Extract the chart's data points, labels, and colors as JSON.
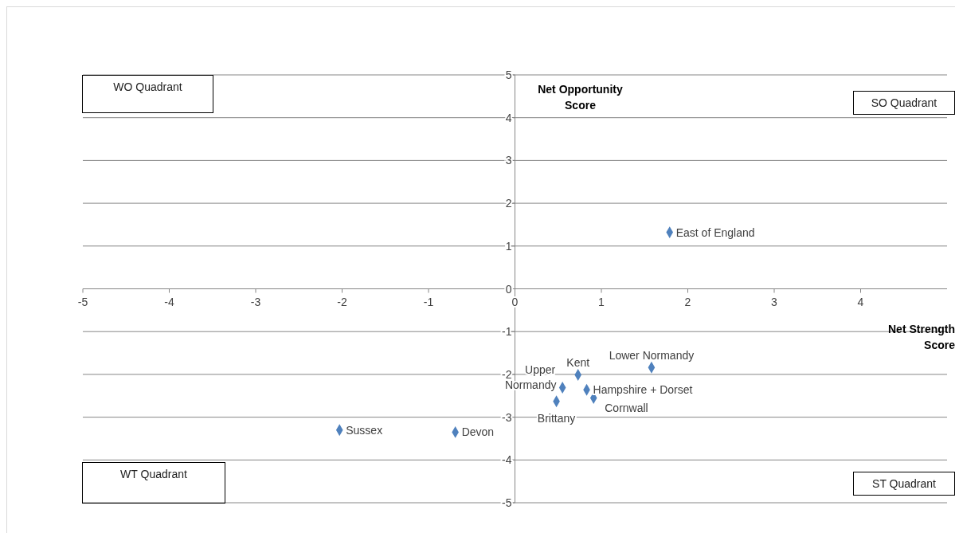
{
  "chart_data": {
    "type": "scatter",
    "xlabel": "Net Strength Score",
    "ylabel": "Net Opportunity Score",
    "xlim": [
      -5,
      5
    ],
    "ylim": [
      -5,
      5
    ],
    "xticks": [
      -5,
      -4,
      -3,
      -2,
      -1,
      0,
      1,
      2,
      3,
      4
    ],
    "yticks": [
      -5,
      -4,
      -3,
      -2,
      -1,
      0,
      1,
      2,
      3,
      4,
      5
    ],
    "grid": "y",
    "marker": "diamond",
    "annotations": [
      "WO Quadrant",
      "SO Quadrant",
      "WT Quadrant",
      "ST Quadrant"
    ],
    "series": [
      {
        "name": "East of England",
        "color": "#4f81bd",
        "x": [
          1.79
        ],
        "values": [
          1.32
        ]
      },
      {
        "name": "Lower Normandy",
        "color": "#4f81bd",
        "x": [
          1.58
        ],
        "values": [
          -1.84
        ]
      },
      {
        "name": "Kent",
        "color": "#4f81bd",
        "x": [
          0.73
        ],
        "values": [
          -2.01
        ]
      },
      {
        "name": "Upper Normandy",
        "color": "#4f81bd",
        "x": [
          0.55
        ],
        "values": [
          -2.31
        ]
      },
      {
        "name": "Hampshire + Dorset",
        "color": "#4f81bd",
        "x": [
          0.83
        ],
        "values": [
          -2.36
        ]
      },
      {
        "name": "Cornwall",
        "color": "#4f81bd",
        "x": [
          0.91
        ],
        "values": [
          -2.55
        ]
      },
      {
        "name": "Brittany",
        "color": "#4f81bd",
        "x": [
          0.48
        ],
        "values": [
          -2.63
        ]
      },
      {
        "name": "Sussex",
        "color": "#4f81bd",
        "x": [
          -2.03
        ],
        "values": [
          -3.3
        ]
      },
      {
        "name": "Devon",
        "color": "#4f81bd",
        "x": [
          -0.69
        ],
        "values": [
          -3.35
        ]
      }
    ]
  }
}
